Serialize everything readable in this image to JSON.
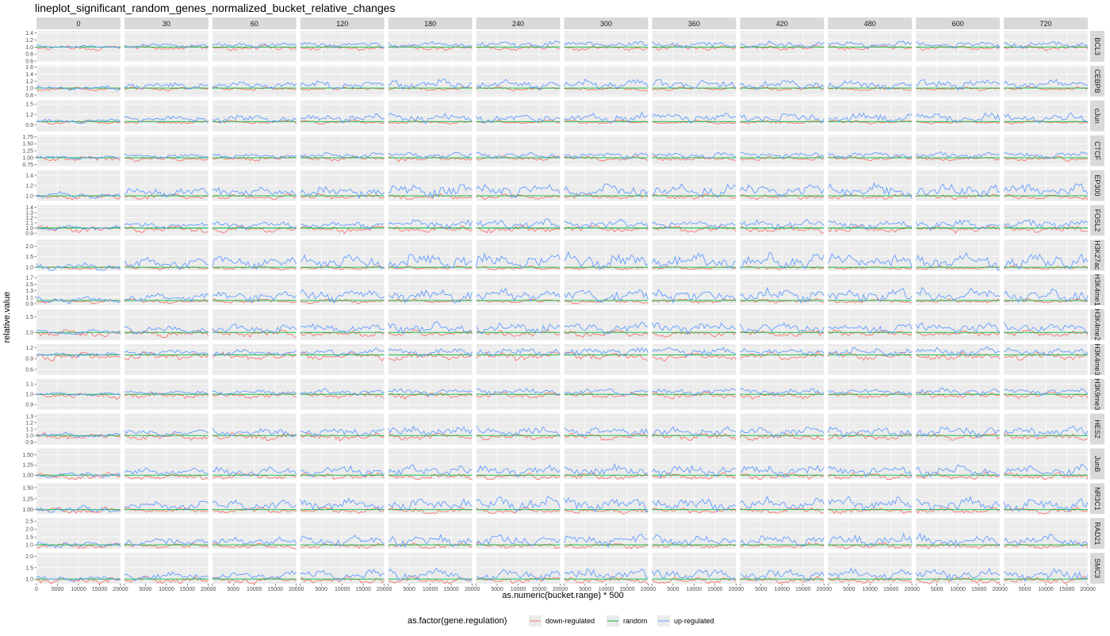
{
  "chart_data": {
    "type": "line",
    "title": "lineplot_significant_random_genes_normalized_bucket_relative_changes",
    "xlabel": "as.numeric(bucket.range) * 500",
    "ylabel": "relative.value",
    "xlim": [
      0,
      20000
    ],
    "x_ticks": [
      0,
      5000,
      10000,
      15000,
      20000
    ],
    "x_tick_labels_first": [
      "0",
      "5000",
      "10000",
      "15000",
      "20000"
    ],
    "x_tick_labels_rest": [
      "",
      "5000",
      "10000",
      "15000",
      "20000"
    ],
    "columns": [
      "0",
      "30",
      "60",
      "120",
      "180",
      "240",
      "300",
      "360",
      "420",
      "480",
      "600",
      "720"
    ],
    "rows": [
      {
        "label": "BCL3",
        "ylim": [
          0.58,
          1.46
        ],
        "ticks": [
          "0.6",
          "0.8",
          "1.0",
          "1.2",
          "1.4"
        ],
        "tick_values": [
          0.6,
          0.8,
          1.0,
          1.2,
          1.4
        ],
        "up_amp": 0.2,
        "down_amp": 0.16
      },
      {
        "label": "CEBPB",
        "ylim": [
          0.76,
          1.64
        ],
        "ticks": [
          "0.8",
          "1.0",
          "1.2",
          "1.4",
          "1.6"
        ],
        "tick_values": [
          0.8,
          1.0,
          1.2,
          1.4,
          1.6
        ],
        "up_amp": 0.3,
        "down_amp": 0.12
      },
      {
        "label": "cJun",
        "ylim": [
          0.72,
          1.6
        ],
        "ticks": [
          "0.9",
          "1.2",
          "1.5"
        ],
        "tick_values": [
          0.9,
          1.2,
          1.5
        ],
        "up_amp": 0.3,
        "down_amp": 0.12
      },
      {
        "label": "CTCF",
        "ylim": [
          0.7,
          1.8
        ],
        "ticks": [
          "0.75",
          "1.00",
          "1.25",
          "1.50",
          "1.75"
        ],
        "tick_values": [
          0.75,
          1.0,
          1.25,
          1.5,
          1.75
        ],
        "up_amp": 0.25,
        "down_amp": 0.2
      },
      {
        "label": "EP300",
        "ylim": [
          0.9,
          1.5
        ],
        "ticks": [
          "1.0",
          "1.2",
          "1.4"
        ],
        "tick_values": [
          1.0,
          1.2,
          1.4
        ],
        "up_amp": 0.28,
        "down_amp": 0.12
      },
      {
        "label": "FOSL2",
        "ylim": [
          0.85,
          1.45
        ],
        "ticks": [
          "0.9",
          "1.0",
          "1.1",
          "1.2",
          "1.3",
          "1.4"
        ],
        "tick_values": [
          0.9,
          1.0,
          1.1,
          1.2,
          1.3,
          1.4
        ],
        "up_amp": 0.2,
        "down_amp": 0.15
      },
      {
        "label": "H3K27ac",
        "ylim": [
          0.85,
          2.3
        ],
        "ticks": [
          "1.0",
          "1.5",
          "2.0"
        ],
        "tick_values": [
          1.0,
          1.5,
          2.0
        ],
        "up_amp": 0.8,
        "down_amp": 0.18
      },
      {
        "label": "H3K4me1",
        "ylim": [
          0.85,
          1.8
        ],
        "ticks": [
          "0.9",
          "1.1",
          "1.3",
          "1.5",
          "1.7"
        ],
        "tick_values": [
          0.9,
          1.1,
          1.3,
          1.5,
          1.7
        ],
        "up_amp": 0.45,
        "down_amp": 0.15
      },
      {
        "label": "H3K4me2",
        "ylim": [
          0.75,
          1.75
        ],
        "ticks": [
          "1.0",
          "1.5"
        ],
        "tick_values": [
          1.0,
          1.5
        ],
        "up_amp": 0.4,
        "down_amp": 0.25
      },
      {
        "label": "H3K4me3",
        "ylim": [
          0.45,
          1.3
        ],
        "ticks": [
          "0.6",
          "0.9",
          "1.2"
        ],
        "tick_values": [
          0.6,
          0.9,
          1.2
        ],
        "up_amp": 0.25,
        "down_amp": 0.25
      },
      {
        "label": "H3K9me3",
        "ylim": [
          0.85,
          1.15
        ],
        "ticks": [
          "0.9",
          "1.0",
          "1.1"
        ],
        "tick_values": [
          0.9,
          1.0,
          1.1
        ],
        "up_amp": 0.07,
        "down_amp": 0.07
      },
      {
        "label": "HES2",
        "ylim": [
          0.86,
          1.34
        ],
        "ticks": [
          "0.9",
          "1.0",
          "1.1",
          "1.2",
          "1.3"
        ],
        "tick_values": [
          0.9,
          1.0,
          1.1,
          1.2,
          1.3
        ],
        "up_amp": 0.17,
        "down_amp": 0.12
      },
      {
        "label": "JunB",
        "ylim": [
          0.9,
          1.65
        ],
        "ticks": [
          "1.00",
          "1.25",
          "1.50"
        ],
        "tick_values": [
          1.0,
          1.25,
          1.5
        ],
        "up_amp": 0.3,
        "down_amp": 0.2
      },
      {
        "label": "NR3C1",
        "ylim": [
          0.9,
          1.6
        ],
        "ticks": [
          "1.00",
          "1.25",
          "1.50"
        ],
        "tick_values": [
          1.0,
          1.25,
          1.5
        ],
        "up_amp": 0.35,
        "down_amp": 0.15
      },
      {
        "label": "RAD21",
        "ylim": [
          0.75,
          2.7
        ],
        "ticks": [
          "1.0",
          "1.5",
          "2.0",
          "2.5"
        ],
        "tick_values": [
          1.0,
          1.5,
          2.0,
          2.5
        ],
        "up_amp": 0.8,
        "down_amp": 0.4
      },
      {
        "label": "SMC3",
        "ylim": [
          0.8,
          2.15
        ],
        "ticks": [
          "1.0",
          "1.5",
          "2.0"
        ],
        "tick_values": [
          1.0,
          1.5,
          2.0
        ],
        "up_amp": 0.55,
        "down_amp": 0.35
      }
    ],
    "series": [
      {
        "name": "down-regulated",
        "color": "#F8766D"
      },
      {
        "name": "random",
        "color": "#00BA38"
      },
      {
        "name": "up-regulated",
        "color": "#619CFF"
      }
    ],
    "points_per_series": 41,
    "random_value": 1.0,
    "legend": {
      "title": "as.factor(gene.regulation)",
      "position": "bottom"
    },
    "panel_background": "#EBEBEB",
    "strip_background": "#D9D9D9",
    "grid_color": "#FFFFFF",
    "grid": true
  }
}
